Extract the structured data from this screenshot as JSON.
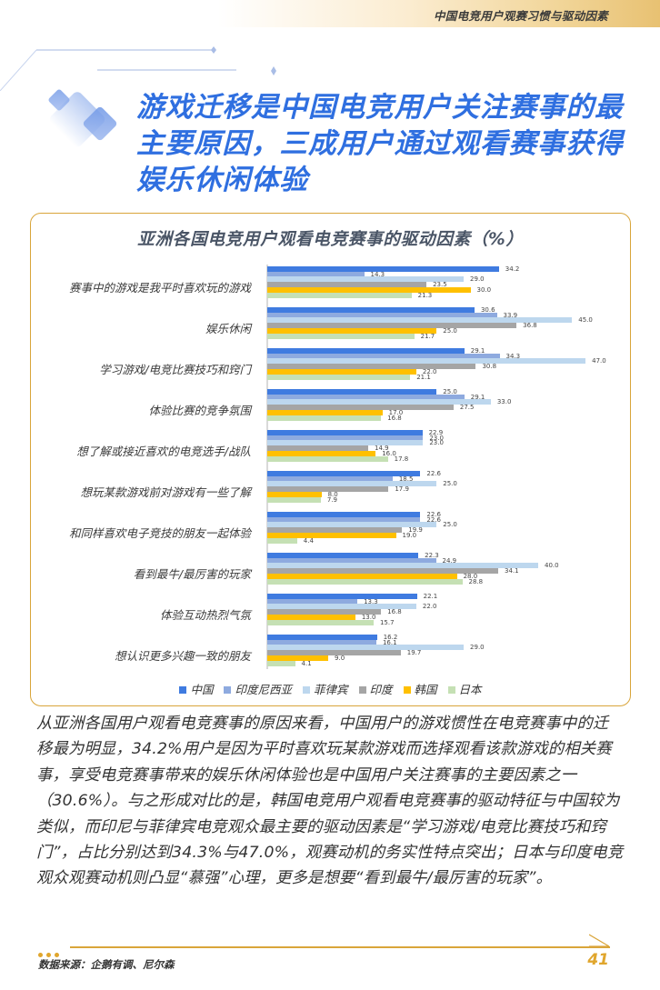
{
  "header": {
    "section_title": "中国电竞用户观赛习惯与驱动因素"
  },
  "headline": "游戏迁移是中国电竞用户关注赛事的最主要原因，三成用户通过观看赛事获得娱乐休闲体验",
  "chart": {
    "title": "亚洲各国电竞用户观看电竞赛事的驱动因素（%）"
  },
  "chart_data": {
    "type": "bar",
    "orientation": "horizontal",
    "title": "亚洲各国电竞用户观看电竞赛事的驱动因素（%）",
    "xlabel": "",
    "ylabel": "",
    "grid": false,
    "legend_position": "bottom",
    "xlim": [
      0,
      50
    ],
    "categories": [
      "赛事中的游戏是我平时喜欢玩的游戏",
      "娱乐休闲",
      "学习游戏/电竞比赛技巧和窍门",
      "体验比赛的竞争氛围",
      "想了解或接近喜欢的电竞选手/战队",
      "想玩某款游戏前对游戏有一些了解",
      "和同样喜欢电子竞技的朋友一起体验",
      "看到最牛/最厉害的玩家",
      "体验互动热烈气氛",
      "想认识更多兴趣一致的朋友"
    ],
    "series": [
      {
        "name": "中国",
        "color": "#3f7be0",
        "values": [
          34.2,
          30.6,
          29.1,
          25.0,
          22.9,
          22.6,
          22.6,
          22.3,
          22.1,
          16.2
        ]
      },
      {
        "name": "印度尼西亚",
        "color": "#8eaadf",
        "values": [
          14.3,
          33.9,
          34.3,
          29.1,
          23.0,
          18.5,
          22.6,
          24.9,
          13.3,
          16.1
        ]
      },
      {
        "name": "菲律宾",
        "color": "#bdd7ee",
        "values": [
          29.0,
          45.0,
          47.0,
          33.0,
          23.0,
          25.0,
          25.0,
          40.0,
          22.0,
          29.0
        ]
      },
      {
        "name": "印度",
        "color": "#a5a5a5",
        "values": [
          23.5,
          36.8,
          30.8,
          27.5,
          14.9,
          17.9,
          19.9,
          34.1,
          16.8,
          19.7
        ]
      },
      {
        "name": "韩国",
        "color": "#ffc000",
        "values": [
          30.0,
          25.0,
          22.0,
          17.0,
          16.0,
          8.0,
          19.0,
          28.0,
          13.0,
          9.0
        ]
      },
      {
        "name": "日本",
        "color": "#c5e0b4",
        "values": [
          21.3,
          21.7,
          21.1,
          16.8,
          17.8,
          7.9,
          4.4,
          28.8,
          15.7,
          4.1
        ]
      }
    ]
  },
  "body_text": "从亚洲各国用户观看电竞赛事的原因来看，中国用户的游戏惯性在电竞赛事中的迁移最为明显，34.2%用户是因为平时喜欢玩某款游戏而选择观看该款游戏的相关赛事，享受电竞赛事带来的娱乐休闲体验也是中国用户关注赛事的主要因素之一（30.6%）。与之形成对比的是，韩国电竞用户观看电竞赛事的驱动特征与中国较为类似，而印尼与菲律宾电竞观众最主要的驱动因素是“学习游戏/电竞比赛技巧和窍门”，占比分别达到34.3%与47.0%，观赛动机的务实性特点突出；日本与印度电竞观众观赛动机则凸显“慕强”心理，更多是想要“看到最牛/最厉害的玩家”。",
  "footer": {
    "source": "数据来源：企鹅有调、尼尔森",
    "page_number": "41"
  },
  "colors": {
    "accent_blue": "#2f6fe0",
    "accent_gold": "#d9a53a"
  }
}
